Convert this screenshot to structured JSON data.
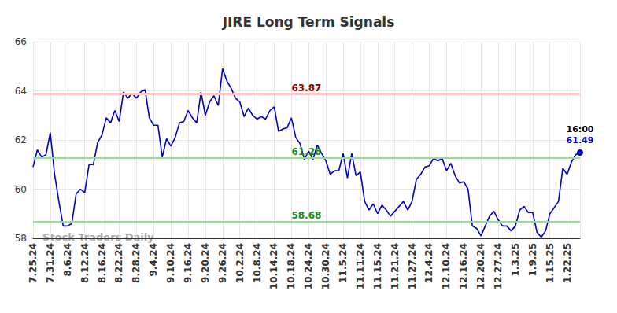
{
  "chart_data": {
    "type": "line",
    "title": "JIRE Long Term Signals",
    "categories": [
      "7.25.24",
      null,
      null,
      null,
      "7.31.24",
      null,
      null,
      null,
      "8.6.24",
      null,
      null,
      null,
      "8.12.24",
      null,
      null,
      null,
      "8.16.24",
      null,
      null,
      null,
      "8.22.24",
      null,
      null,
      null,
      "8.28.24",
      null,
      null,
      null,
      "9.4.24",
      null,
      null,
      null,
      "9.10.24",
      null,
      null,
      null,
      "9.16.24",
      null,
      null,
      null,
      "9.20.24",
      null,
      null,
      null,
      "9.26.24",
      null,
      null,
      null,
      "10.2.24",
      null,
      null,
      null,
      "10.8.24",
      null,
      null,
      null,
      "10.14.24",
      null,
      null,
      null,
      "10.18.24",
      null,
      null,
      null,
      "10.24.24",
      null,
      null,
      null,
      "10.30.24",
      null,
      null,
      null,
      "11.5.24",
      null,
      null,
      null,
      "11.11.24",
      null,
      null,
      null,
      "11.15.24",
      null,
      null,
      null,
      "11.21.24",
      null,
      null,
      null,
      "11.27.24",
      null,
      null,
      null,
      "12.4.24",
      null,
      null,
      null,
      "12.10.24",
      null,
      null,
      null,
      "12.16.24",
      null,
      null,
      null,
      "12.20.24",
      null,
      null,
      null,
      "12.27.24",
      null,
      null,
      null,
      "1.3.25",
      null,
      null,
      null,
      "1.9.25",
      null,
      null,
      null,
      "1.15.25",
      null,
      null,
      null,
      "1.22.25",
      null,
      null,
      null
    ],
    "values": [
      60.9,
      61.6,
      61.3,
      61.4,
      62.3,
      60.6,
      59.5,
      58.5,
      58.5,
      58.6,
      59.8,
      60.0,
      59.85,
      61.0,
      61.0,
      61.9,
      62.2,
      62.9,
      62.7,
      63.2,
      62.75,
      63.95,
      63.7,
      63.9,
      63.7,
      63.95,
      64.05,
      62.9,
      62.6,
      62.6,
      61.3,
      62.05,
      61.75,
      62.1,
      62.7,
      62.75,
      63.2,
      62.9,
      62.7,
      63.95,
      63.0,
      63.55,
      63.8,
      63.4,
      64.9,
      64.4,
      64.1,
      63.7,
      63.55,
      62.95,
      63.3,
      63.0,
      62.85,
      62.95,
      62.85,
      63.2,
      63.35,
      62.35,
      62.45,
      62.5,
      62.9,
      62.1,
      61.85,
      61.2,
      61.55,
      61.2,
      61.8,
      61.45,
      61.15,
      60.6,
      60.75,
      60.75,
      61.45,
      60.45,
      61.45,
      60.55,
      60.7,
      59.5,
      59.15,
      59.4,
      59.0,
      59.35,
      59.15,
      58.9,
      59.1,
      59.3,
      59.5,
      59.15,
      59.5,
      60.4,
      60.6,
      60.9,
      60.95,
      61.25,
      61.15,
      61.25,
      60.75,
      61.05,
      60.55,
      60.25,
      60.3,
      60.0,
      58.5,
      58.4,
      58.1,
      58.5,
      58.9,
      59.1,
      58.75,
      58.5,
      58.5,
      58.3,
      58.5,
      59.15,
      59.3,
      59.05,
      59.05,
      58.25,
      58.05,
      58.3,
      59.0,
      59.25,
      59.5,
      60.85,
      60.6,
      61.1,
      61.4,
      61.49
    ],
    "color": "#0000cc",
    "ylim": [
      58,
      66
    ],
    "yticks": [
      58,
      60,
      62,
      64,
      66
    ],
    "grid": true,
    "reference_lines": [
      {
        "value": 63.87,
        "color": "#ffc8c8"
      },
      {
        "value": 61.28,
        "color": "#90e090"
      },
      {
        "value": 58.68,
        "color": "#90e090"
      }
    ],
    "last_point": {
      "time": "16:00",
      "value": 61.49
    },
    "watermark": "Stock Traders Daily"
  }
}
